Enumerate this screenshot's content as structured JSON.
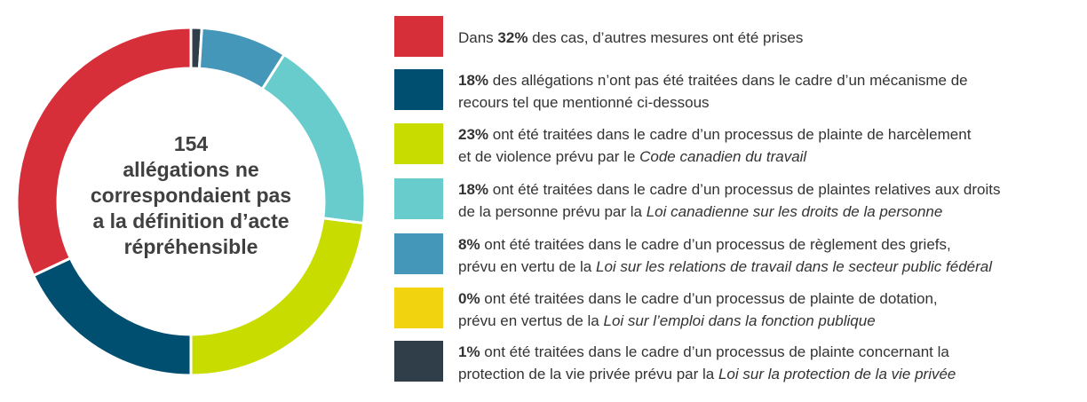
{
  "chart_data": {
    "type": "pie",
    "donut": true,
    "center_text": [
      "154",
      "allégations ne",
      "correspondaient pas",
      "a la définition d’acte",
      "répréhensible"
    ],
    "slices": [
      {
        "value": 1,
        "color": "#2f3e48"
      },
      {
        "value": 8,
        "color": "#4597b9"
      },
      {
        "value": 18,
        "color": "#69cccc"
      },
      {
        "value": 23,
        "color": "#c8dc00"
      },
      {
        "value": 18,
        "color": "#004e70"
      },
      {
        "value": 32,
        "color": "#d62f3a"
      },
      {
        "value": 0,
        "color": "#f2d30f"
      }
    ]
  },
  "legend": [
    {
      "color": "#d62f3a",
      "lines": [
        [
          {
            "t": "Dans "
          },
          {
            "t": "32%",
            "b": true
          },
          {
            "t": " des cas, d’autres mesures ont été prises"
          }
        ]
      ]
    },
    {
      "color": "#004e70",
      "lines": [
        [
          {
            "t": "18%",
            "b": true
          },
          {
            "t": " des allégations n’ont pas été traitées dans le cadre d’un mécanisme de"
          }
        ],
        [
          {
            "t": "recours tel que mentionné ci-dessous"
          }
        ]
      ]
    },
    {
      "color": "#c8dc00",
      "lines": [
        [
          {
            "t": "23%",
            "b": true
          },
          {
            "t": " ont été traitées dans le cadre d’un processus de plainte de harcèlement"
          }
        ],
        [
          {
            "t": "et de violence prévu par le "
          },
          {
            "t": "Code canadien du travail",
            "i": true
          }
        ]
      ]
    },
    {
      "color": "#69cccc",
      "lines": [
        [
          {
            "t": "18%",
            "b": true
          },
          {
            "t": " ont été traitées dans le cadre d’un processus de plaintes relatives aux droits"
          }
        ],
        [
          {
            "t": "de la personne prévu par la "
          },
          {
            "t": "Loi canadienne sur les droits de la personne",
            "i": true
          }
        ]
      ]
    },
    {
      "color": "#4597b9",
      "lines": [
        [
          {
            "t": "8%",
            "b": true
          },
          {
            "t": " ont été traitées dans le cadre d’un processus de règlement des griefs,"
          }
        ],
        [
          {
            "t": "prévu en vertu de la "
          },
          {
            "t": "Loi sur les relations de travail dans le secteur public fédéral",
            "i": true
          }
        ]
      ]
    },
    {
      "color": "#f2d30f",
      "lines": [
        [
          {
            "t": "0%",
            "b": true
          },
          {
            "t": " ont été traitées dans le cadre d’un processus de plainte de dotation,"
          }
        ],
        [
          {
            "t": "prévu en vertus de la "
          },
          {
            "t": "Loi sur l’emploi dans la fonction publique",
            "i": true
          }
        ]
      ]
    },
    {
      "color": "#2f3e48",
      "lines": [
        [
          {
            "t": "1%",
            "b": true
          },
          {
            "t": " ont été traitées dans le cadre d’un processus de plainte concernant la"
          }
        ],
        [
          {
            "t": "protection de la vie privée prévu par la "
          },
          {
            "t": "Loi sur la protection de la vie privée",
            "i": true
          }
        ]
      ]
    }
  ]
}
